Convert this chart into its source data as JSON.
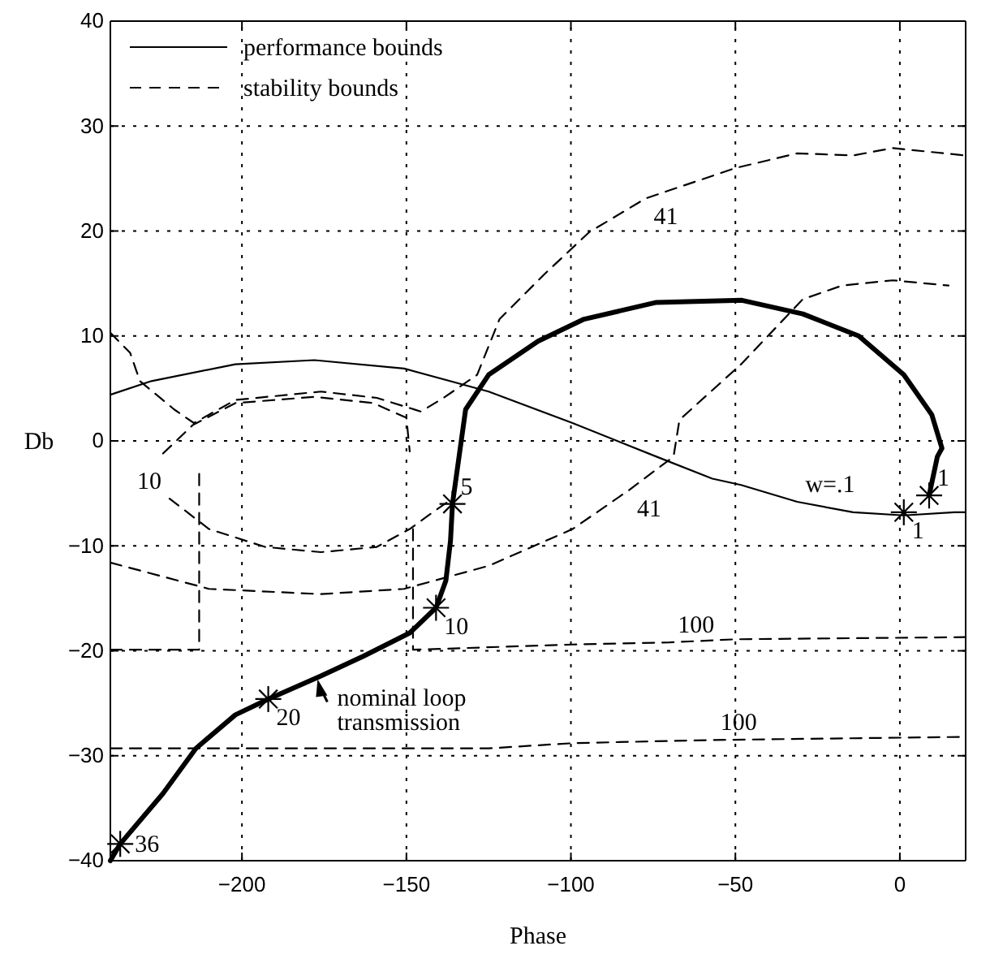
{
  "chart_data": {
    "type": "line",
    "xlabel": "Phase",
    "ylabel": "Db",
    "xlim": [
      -240,
      20
    ],
    "ylim": [
      -40,
      40
    ],
    "xticks": [
      -200,
      -150,
      -100,
      -50,
      0
    ],
    "yticks": [
      -40,
      -30,
      -20,
      -10,
      0,
      10,
      20,
      30,
      40
    ],
    "grid": true,
    "legend": "top left",
    "series": [
      {
        "color": "#000000",
        "line_style": "solid",
        "marker": "none",
        "x": [
          -240,
          -237,
          -224,
          -214,
          -202,
          -192,
          -176,
          -163,
          -149,
          -141,
          -138,
          -136.6,
          -136,
          -134,
          -132,
          -125,
          -110,
          -96,
          -74,
          -48,
          -29.5,
          -12.5,
          1.2,
          9.7,
          12.8,
          11.4,
          8.9
        ],
        "values": [
          -40,
          -38.4,
          -33.6,
          -29.3,
          -26.1,
          -24.6,
          -22.4,
          -20.5,
          -18.3,
          -15.9,
          -13.3,
          -9.5,
          -6,
          -1.5,
          3,
          6.3,
          9.5,
          11.6,
          13.2,
          13.4,
          12.1,
          10,
          6.3,
          2.5,
          -0.7,
          -1.5,
          -5.2
        ]
      },
      {
        "name": "performance bounds",
        "color": "#000000",
        "line_style": "solid",
        "marker": "none",
        "x": [
          -240,
          -227.5,
          -202,
          -178,
          -150.7,
          -125,
          -99.5,
          -74,
          -57,
          -48.3,
          -31.2,
          -14.2,
          1.2,
          16.6,
          20
        ],
        "values": [
          4.4,
          5.7,
          7.3,
          7.7,
          6.9,
          4.7,
          1.7,
          -1.5,
          -3.6,
          -4.2,
          -5.8,
          -6.8,
          -7.1,
          -6.8,
          -6.8
        ]
      },
      {
        "name": "stability bounds",
        "color": "#000000",
        "line_style": "dashed",
        "marker": "none",
        "x": [
          -240,
          -210,
          -176,
          -150.7,
          -125,
          -99.5,
          -82.4,
          -68.8,
          -67,
          -48.3,
          -29.5,
          -17.6,
          -2.2,
          14.8
        ],
        "values": [
          -11.6,
          -14.1,
          -14.6,
          -14.1,
          -11.9,
          -8.4,
          -4.7,
          -1.5,
          2,
          7.3,
          13.5,
          14.8,
          15.3,
          14.8
        ]
      },
      {
        "color": "#000000",
        "line_style": "dashed",
        "marker": "none",
        "x": [
          -240,
          -234,
          -231,
          -220.6,
          -214.6,
          -202,
          -176,
          -159,
          -145.6,
          -138.7,
          -128.5,
          -121.7,
          -108,
          -94.4,
          -77.3,
          -50,
          -31.2,
          -14.2,
          -2.2,
          20
        ],
        "values": [
          10.3,
          8.4,
          5.7,
          3,
          1.7,
          3.9,
          4.7,
          4.1,
          2.8,
          4.1,
          6.3,
          11.6,
          15.9,
          19.9,
          23.1,
          26,
          27.4,
          27.2,
          27.9,
          27.2
        ]
      },
      {
        "color": "#000000",
        "line_style": "dashed",
        "marker": "none",
        "x": [
          -224,
          -215,
          -202,
          -178,
          -160,
          -150,
          -149
        ],
        "values": [
          -1.2,
          1.5,
          3.6,
          4.2,
          3.6,
          2.2,
          -1
        ]
      },
      {
        "color": "#000000",
        "line_style": "dashed",
        "marker": "none",
        "x": [
          -222,
          -210,
          -193,
          -176,
          -159,
          -149,
          -142,
          -136
        ],
        "values": [
          -5.5,
          -8.4,
          -10.1,
          -10.6,
          -10.1,
          -8.4,
          -6.8,
          -5.5
        ]
      },
      {
        "color": "#000000",
        "line_style": "dashed",
        "marker": "none",
        "x": [
          -240,
          -213,
          -213
        ],
        "values": [
          -19.9,
          -19.9,
          -2.5
        ]
      },
      {
        "color": "#000000",
        "line_style": "dashed",
        "marker": "none",
        "x": [
          -148,
          -148,
          -99.5,
          -70,
          -50,
          20
        ],
        "values": [
          -8.4,
          -19.9,
          -19.4,
          -19.2,
          -18.9,
          -18.7
        ]
      },
      {
        "color": "#000000",
        "line_style": "dashed",
        "marker": "none",
        "x": [
          -240,
          -193,
          -125,
          -99.5,
          -57,
          20
        ],
        "values": [
          -29.3,
          -29.3,
          -29.3,
          -28.8,
          -28.5,
          -28.2
        ]
      },
      {
        "type": "scatter",
        "color": "#000000",
        "marker": "cross",
        "x": [
          -237,
          -192,
          -141,
          -136,
          8.9,
          1.2
        ],
        "values": [
          -38.4,
          -24.6,
          -15.9,
          -6,
          -5.2,
          -6.8
        ]
      }
    ],
    "annotations": [
      {
        "text": "41",
        "x": -77.3,
        "y": 23.1
      },
      {
        "text": "41",
        "x": -82.4,
        "y": -4.7
      },
      {
        "text": "10",
        "x": -222,
        "y": -5.5
      },
      {
        "text": "100",
        "x": -70,
        "y": -19.2
      },
      {
        "text": "100",
        "x": -57,
        "y": -28.5
      },
      {
        "text": "w=.1",
        "x": -31.2,
        "y": -5.8
      },
      {
        "text": "5",
        "x": -136,
        "y": -6
      },
      {
        "text": "10",
        "x": -141,
        "y": -15.9
      },
      {
        "text": "20",
        "x": -192,
        "y": -24.6
      },
      {
        "text": "36",
        "x": -237,
        "y": -38.4
      },
      {
        "text": "1",
        "x": 1.2,
        "y": -6.8
      },
      {
        "text": "1",
        "x": 8.9,
        "y": -5.2
      },
      {
        "text": "nominal loop transmission",
        "x": -177,
        "y": -22.4
      }
    ]
  }
}
